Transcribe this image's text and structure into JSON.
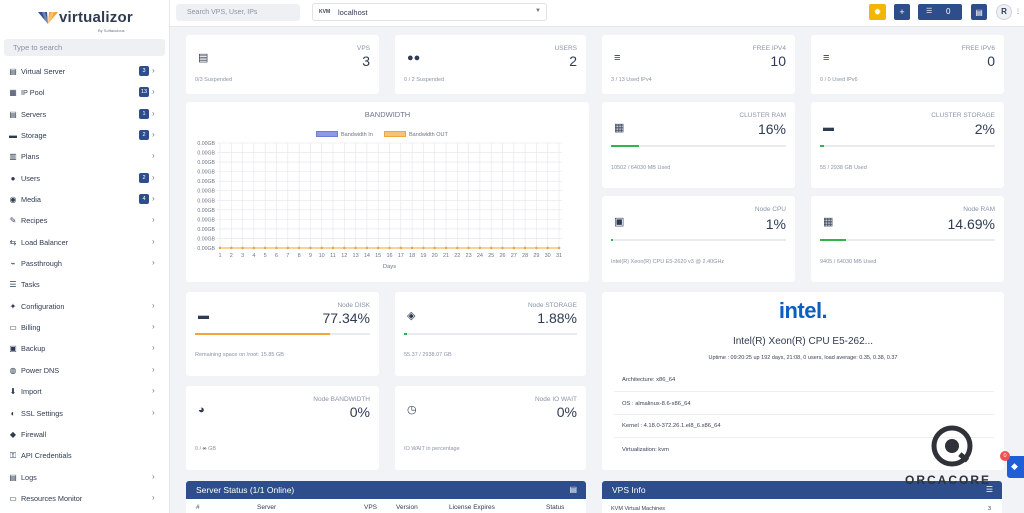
{
  "brand": {
    "name": "virtualizor",
    "tagline": "By Softaculous"
  },
  "sidebar": {
    "search_placeholder": "Type to search",
    "items": [
      {
        "label": "Virtual Server",
        "badge": "3",
        "icon": "server-icon"
      },
      {
        "label": "IP Pool",
        "badge": "13",
        "icon": "ip-pool-icon"
      },
      {
        "label": "Servers",
        "badge": "1",
        "icon": "servers-icon"
      },
      {
        "label": "Storage",
        "badge": "2",
        "icon": "storage-icon"
      },
      {
        "label": "Plans",
        "badge": "",
        "icon": "plans-icon"
      },
      {
        "label": "Users",
        "badge": "2",
        "icon": "users-icon"
      },
      {
        "label": "Media",
        "badge": "4",
        "icon": "media-icon"
      },
      {
        "label": "Recipes",
        "badge": "",
        "icon": "recipes-icon"
      },
      {
        "label": "Load Balancer",
        "badge": "",
        "icon": "load-balancer-icon"
      },
      {
        "label": "Passthrough",
        "badge": "",
        "icon": "usb-icon"
      },
      {
        "label": "Tasks",
        "badge": "",
        "icon": "tasks-icon"
      },
      {
        "label": "Configuration",
        "badge": "",
        "icon": "wrench-icon"
      },
      {
        "label": "Billing",
        "badge": "",
        "icon": "billing-icon"
      },
      {
        "label": "Backup",
        "badge": "",
        "icon": "backup-icon"
      },
      {
        "label": "Power DNS",
        "badge": "",
        "icon": "dns-icon"
      },
      {
        "label": "Import",
        "badge": "",
        "icon": "import-icon"
      },
      {
        "label": "SSL Settings",
        "badge": "",
        "icon": "ssl-icon"
      },
      {
        "label": "Firewall",
        "badge": "",
        "icon": "shield-icon"
      },
      {
        "label": "API Credentials",
        "badge": "",
        "icon": "key-icon"
      },
      {
        "label": "Logs",
        "badge": "",
        "icon": "logs-icon"
      },
      {
        "label": "Resources Monitor",
        "badge": "",
        "icon": "monitor-icon"
      }
    ]
  },
  "topbar": {
    "search_placeholder": "Search VPS, User, IPs",
    "server_type": "KVM",
    "server_name": "localhost",
    "task_count": "0",
    "avatar_letter": "R"
  },
  "stats": {
    "vps": {
      "title": "VPS",
      "value": "3",
      "sub": "0/3 Suspended"
    },
    "users": {
      "title": "USERS",
      "value": "2",
      "sub": "0 / 2 Suspended"
    },
    "ipv4": {
      "title": "FREE IPV4",
      "value": "10",
      "sub": "3 / 13 Used IPv4"
    },
    "ipv6": {
      "title": "FREE IPV6",
      "value": "0",
      "sub": "0 / 0 Used IPv6"
    },
    "cluster_ram": {
      "title": "CLUSTER RAM",
      "value": "16%",
      "sub": "10502 / 64030 MB Used",
      "percent": 16
    },
    "cluster_storage": {
      "title": "CLUSTER STORAGE",
      "value": "2%",
      "sub": "55 / 2938 GB Used",
      "percent": 2
    },
    "node_cpu": {
      "title": "Node CPU",
      "value": "1%",
      "sub": "Intel(R) Xeon(R) CPU E5-2620 v3 @ 2.40GHz",
      "percent": 1
    },
    "node_ram": {
      "title": "Node RAM",
      "value": "14.69%",
      "sub": "9405 / 64030 MB Used",
      "percent": 14.69
    },
    "node_disk": {
      "title": "Node DISK",
      "value": "77.34%",
      "sub": "Remaining space on /root: 15.85 GB",
      "percent": 77.34
    },
    "node_storage": {
      "title": "Node STORAGE",
      "value": "1.88%",
      "sub": "55.37 / 2938.07 GB",
      "percent": 1.88
    },
    "node_bandwidth": {
      "title": "Node BANDWIDTH",
      "value": "0%",
      "sub_prefix": "0 /",
      "sub_suffix": "GB"
    },
    "io_wait": {
      "title": "Node IO WAIT",
      "value": "0%",
      "sub": "IO WAIT in percentage"
    }
  },
  "bandwidth": {
    "title": "BANDWIDTH"
  },
  "chart_data": {
    "type": "line",
    "title": "BANDWIDTH",
    "xlabel": "Days",
    "ylabel": "",
    "x": [
      1,
      2,
      3,
      4,
      5,
      6,
      7,
      8,
      9,
      10,
      11,
      12,
      13,
      14,
      15,
      16,
      17,
      18,
      19,
      20,
      21,
      22,
      23,
      24,
      25,
      26,
      27,
      28,
      29,
      30,
      31
    ],
    "y_ticks": [
      "0.00GB",
      "0.00GB",
      "0.00GB",
      "0.00GB",
      "0.00GB",
      "0.00GB",
      "0.00GB",
      "0.00GB",
      "0.00GB",
      "0.00GB",
      "0.00GB",
      "0.00GB"
    ],
    "series": [
      {
        "name": "Bandwidth In",
        "color": "#6b7fd7",
        "values": [
          0,
          0,
          0,
          0,
          0,
          0,
          0,
          0,
          0,
          0,
          0,
          0,
          0,
          0,
          0,
          0,
          0,
          0,
          0,
          0,
          0,
          0,
          0,
          0,
          0,
          0,
          0,
          0,
          0,
          0,
          0
        ]
      },
      {
        "name": "Bandwidth OUT",
        "color": "#f2a53a",
        "values": [
          0,
          0,
          0,
          0,
          0,
          0,
          0,
          0,
          0,
          0,
          0,
          0,
          0,
          0,
          0,
          0,
          0,
          0,
          0,
          0,
          0,
          0,
          0,
          0,
          0,
          0,
          0,
          0,
          0,
          0,
          0
        ]
      }
    ],
    "grid": true,
    "legend": "top-center"
  },
  "cpu_info": {
    "brand": "intel.",
    "name": "Intel(R) Xeon(R) CPU E5-262...",
    "uptime": "Uptime : 09:20:25 up 192 days, 21:08, 0 users, load average: 0.35, 0.38, 0.37",
    "architecture": "Architecture:  x86_64",
    "os": "OS :  almalinux-8.6-x86_64",
    "kernel": "Kernel :  4.18.0-372.26.1.el8_6.x86_64",
    "virtualization": "Virtualization:  kvm"
  },
  "server_status": {
    "title": "Server Status (1/1 Online)",
    "columns": [
      "#",
      "Server",
      "VPS",
      "Version",
      "License Expires",
      "Status"
    ]
  },
  "vps_info": {
    "title": "VPS Info",
    "row_label": "KVM Virtual Machines",
    "row_value": "3"
  },
  "watermark": {
    "text": "ORCACORE"
  },
  "notification": {
    "count": "0"
  },
  "colors": {
    "primary": "#2d4e8a",
    "accent": "#f2b705",
    "orange": "#f2a53a",
    "green": "#34b34a"
  }
}
